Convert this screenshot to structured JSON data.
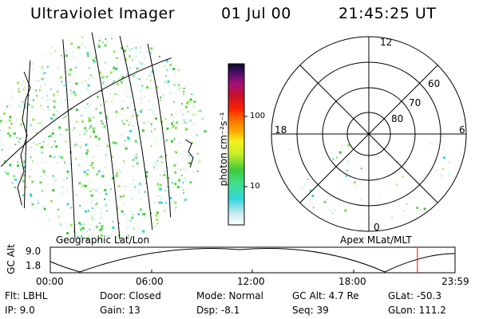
{
  "header": {
    "instrument": "Ultraviolet Imager",
    "date": "01 Jul 00",
    "time": "21:45:25 UT"
  },
  "panels": {
    "left_label": "Geographic Lat/Lon",
    "right_label": "Apex MLat/MLT"
  },
  "colorbar": {
    "unit_label": "photon cm⁻²s⁻¹",
    "ticks": [
      "100",
      "10"
    ]
  },
  "polar": {
    "mlt_labels": {
      "top": "12",
      "bottom": "0",
      "left": "18",
      "right": "6"
    },
    "lat_labels": [
      "60",
      "70",
      "80"
    ]
  },
  "timeline": {
    "ylabel": "GC Alt",
    "yticks": [
      "9.0",
      "1.8"
    ],
    "xticks": [
      "00:00",
      "06:00",
      "12:00",
      "18:00",
      "23:59"
    ],
    "current_time_fraction": 0.907
  },
  "status": {
    "row1": {
      "filter": "Flt: LBHL",
      "door": "Door: Closed",
      "mode": "Mode: Normal",
      "gc_alt": "GC Alt: 4.7 Re",
      "glat": "GLat: -50.3"
    },
    "row2": {
      "ip": "IP: 9.0",
      "gain": "Gain: 13",
      "dsp": "Dsp:   -8.1",
      "seq": "Seq: 39",
      "glon": "GLon: 111.2"
    }
  },
  "colors": {
    "current_time_marker": "#ff0000"
  }
}
